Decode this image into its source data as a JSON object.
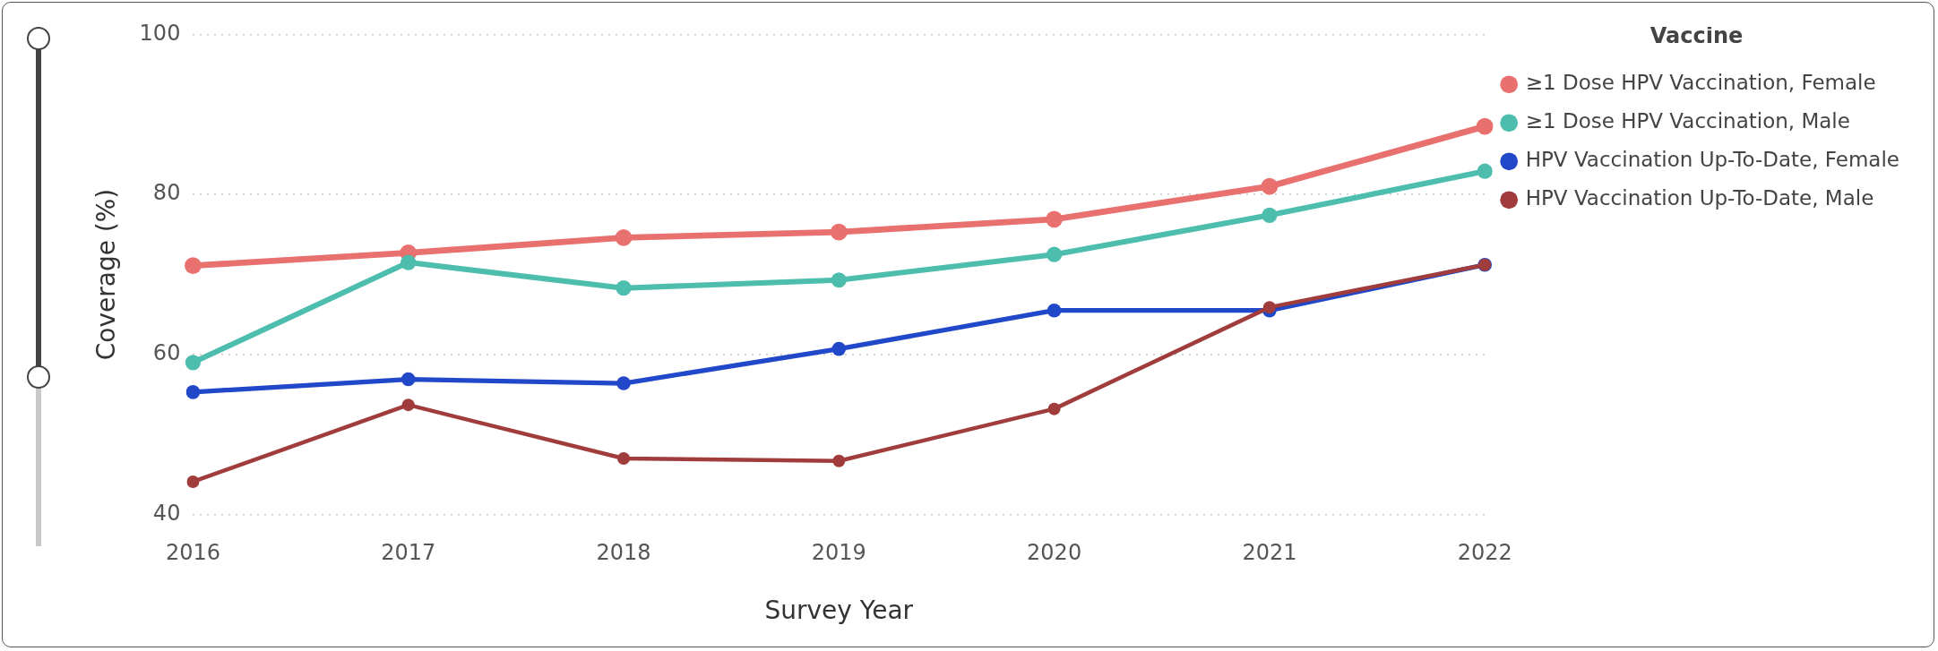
{
  "chart_data": {
    "type": "line",
    "xlabel": "Survey Year",
    "ylabel": "Coverage (%)",
    "legend_title": "Vaccine",
    "categories": [
      "2016",
      "2017",
      "2018",
      "2019",
      "2020",
      "2021",
      "2022"
    ],
    "series": [
      {
        "name": "≥1 Dose HPV Vaccination, Female",
        "color": "#e8716f",
        "values": [
          71.1,
          72.7,
          74.6,
          75.3,
          76.9,
          81.0,
          88.5
        ]
      },
      {
        "name": "≥1 Dose HPV Vaccination, Male",
        "color": "#4dbdad",
        "values": [
          59.0,
          71.5,
          68.3,
          69.3,
          72.5,
          77.4,
          82.9
        ]
      },
      {
        "name": "HPV Vaccination Up-To-Date, Female",
        "color": "#2148c8",
        "values": [
          55.3,
          56.9,
          56.4,
          60.7,
          65.5,
          65.5,
          71.2
        ]
      },
      {
        "name": "HPV Vaccination Up-To-Date, Male",
        "color": "#a13c3c",
        "values": [
          44.1,
          53.7,
          47.0,
          46.7,
          53.2,
          65.9,
          71.2
        ]
      }
    ],
    "ylim": [
      40,
      100
    ],
    "yticks": [
      40,
      60,
      80,
      100
    ],
    "grid": "y",
    "legend": "top right",
    "marker": "circle",
    "line_style": "solid"
  }
}
